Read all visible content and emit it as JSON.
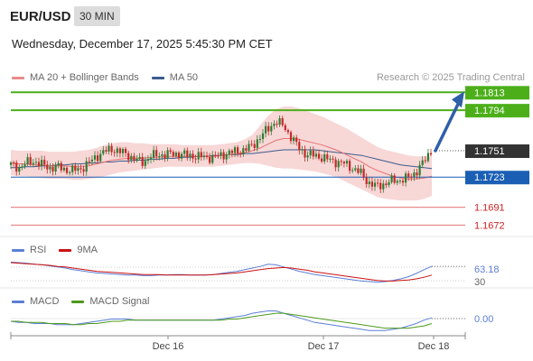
{
  "header": {
    "symbol": "EUR/USD",
    "timeframe": "30 MIN",
    "timestamp": "Wednesday, December 17, 2025 5:45:30 PM CET",
    "credit": "Research © 2025 Trading Central"
  },
  "legend": {
    "ma20": "MA 20 + Bollinger Bands",
    "ma50": "MA 50",
    "rsi": "RSI",
    "rsi_ma": "9MA",
    "macd": "MACD",
    "macd_signal": "MACD Signal"
  },
  "colors": {
    "bull": "#2e7d32",
    "bear": "#c62828",
    "green_level": "#4caf1a",
    "blue_level": "#1a5fb4",
    "red_level": "#e88a8a",
    "bollinger": "#f8d7d7",
    "ma20": "#e57373",
    "ma50": "#3b5b8c",
    "arrow": "#2f5fa8",
    "rsi_line": "#5b7fd6",
    "ma_line": "#cc1111",
    "macd_line": "#5b7fd6",
    "signal_line": "#4c9a1c"
  },
  "chart_data": [
    {
      "type": "candlestick",
      "title": "EUR/USD 30 MIN",
      "x_tick_labels": [
        "Dec 16",
        "Dec 17",
        "Dec 18"
      ],
      "price_range": [
        1.166,
        1.182
      ],
      "levels": [
        {
          "value": 1.1813,
          "label": "1.1813",
          "kind": "resistance",
          "color": "#4caf1a"
        },
        {
          "value": 1.1794,
          "label": "1.1794",
          "kind": "resistance",
          "color": "#4caf1a"
        },
        {
          "value": 1.1751,
          "label": "1.1751",
          "kind": "current",
          "color": "#333333"
        },
        {
          "value": 1.1723,
          "label": "1.1723",
          "kind": "pivot",
          "color": "#1a5fb4"
        },
        {
          "value": 1.1691,
          "label": "1.1691",
          "kind": "support",
          "color": "#cc2222"
        },
        {
          "value": 1.1672,
          "label": "1.1672",
          "kind": "support",
          "color": "#cc2222"
        }
      ],
      "close_path": [
        1.1736,
        1.1733,
        1.1738,
        1.174,
        1.1736,
        1.1733,
        1.1734,
        1.1731,
        1.173,
        1.1732,
        1.1738,
        1.1745,
        1.175,
        1.1753,
        1.175,
        1.1747,
        1.1741,
        1.1739,
        1.1745,
        1.1747,
        1.1747,
        1.1748,
        1.1747,
        1.1746,
        1.1745,
        1.1744,
        1.1744,
        1.1746,
        1.1749,
        1.175,
        1.1752,
        1.1756,
        1.1765,
        1.1774,
        1.1782,
        1.1778,
        1.1766,
        1.1754,
        1.1747,
        1.1746,
        1.1744,
        1.1741,
        1.1739,
        1.1737,
        1.1732,
        1.1727,
        1.1717,
        1.1713,
        1.1716,
        1.1719,
        1.172,
        1.1722,
        1.1728,
        1.1738,
        1.1751
      ],
      "ma20": [
        1.1738,
        1.1737,
        1.1737,
        1.1736,
        1.1736,
        1.1735,
        1.1735,
        1.1735,
        1.1734,
        1.1734,
        1.1735,
        1.1737,
        1.1739,
        1.1741,
        1.1742,
        1.1743,
        1.1743,
        1.1743,
        1.1744,
        1.1744,
        1.1745,
        1.1745,
        1.1745,
        1.1745,
        1.1745,
        1.1745,
        1.1745,
        1.1746,
        1.1747,
        1.1748,
        1.1749,
        1.1751,
        1.1754,
        1.1758,
        1.1762,
        1.1764,
        1.1764,
        1.1763,
        1.1761,
        1.1759,
        1.1757,
        1.1754,
        1.1751,
        1.1747,
        1.1743,
        1.1739,
        1.1734,
        1.173,
        1.1727,
        1.1724,
        1.1722,
        1.1721,
        1.1721,
        1.1722,
        1.1724
      ],
      "ma50": [
        1.1733,
        1.1733,
        1.1734,
        1.1734,
        1.1735,
        1.1735,
        1.1736,
        1.1736,
        1.1737,
        1.1737,
        1.1738,
        1.1738,
        1.1739,
        1.1739,
        1.174,
        1.174,
        1.1741,
        1.1741,
        1.1742,
        1.1742,
        1.1743,
        1.1743,
        1.1744,
        1.1744,
        1.1745,
        1.1745,
        1.1746,
        1.1746,
        1.1747,
        1.1747,
        1.1748,
        1.1748,
        1.1749,
        1.175,
        1.1751,
        1.1752,
        1.1752,
        1.1752,
        1.1752,
        1.1752,
        1.1751,
        1.175,
        1.1749,
        1.1748,
        1.1747,
        1.1746,
        1.1744,
        1.1742,
        1.174,
        1.1738,
        1.1736,
        1.1735,
        1.1734,
        1.1733,
        1.1732
      ],
      "bollinger_upper": [
        1.1752,
        1.1751,
        1.1751,
        1.1751,
        1.1751,
        1.175,
        1.175,
        1.175,
        1.175,
        1.1751,
        1.1752,
        1.1754,
        1.1757,
        1.1759,
        1.176,
        1.176,
        1.1759,
        1.1759,
        1.1758,
        1.1758,
        1.1758,
        1.1758,
        1.1757,
        1.1757,
        1.1757,
        1.1757,
        1.1757,
        1.1758,
        1.1759,
        1.176,
        1.1763,
        1.1768,
        1.1778,
        1.1788,
        1.1795,
        1.1798,
        1.1798,
        1.1796,
        1.1793,
        1.179,
        1.1787,
        1.1783,
        1.1779,
        1.1775,
        1.177,
        1.1765,
        1.176,
        1.1755,
        1.1752,
        1.175,
        1.1748,
        1.1746,
        1.1745,
        1.1745,
        1.1745
      ],
      "bollinger_lower": [
        1.1725,
        1.1724,
        1.1724,
        1.1723,
        1.1722,
        1.1721,
        1.1721,
        1.1721,
        1.172,
        1.172,
        1.1721,
        1.1722,
        1.1724,
        1.1726,
        1.1728,
        1.1729,
        1.173,
        1.1731,
        1.1732,
        1.1733,
        1.1734,
        1.1734,
        1.1734,
        1.1734,
        1.1734,
        1.1734,
        1.1734,
        1.1735,
        1.1736,
        1.1737,
        1.1738,
        1.1738,
        1.1737,
        1.1735,
        1.1733,
        1.1732,
        1.1732,
        1.1731,
        1.173,
        1.1729,
        1.1727,
        1.1725,
        1.1722,
        1.1718,
        1.1714,
        1.171,
        1.1706,
        1.1702,
        1.17,
        1.1699,
        1.1698,
        1.1698,
        1.1698,
        1.17,
        1.1703
      ],
      "projection": {
        "from": 1.1751,
        "to": 1.1813
      }
    },
    {
      "type": "line",
      "title": "RSI",
      "value_label": "63.18",
      "hidden_level_label": "30",
      "range": [
        25,
        80
      ],
      "series": [
        {
          "name": "RSI",
          "values": [
            71,
            70,
            69,
            67,
            66,
            64,
            62,
            60,
            57,
            55,
            53,
            51,
            50,
            49,
            48,
            47,
            47,
            46,
            46,
            47,
            47,
            48,
            48,
            47,
            47,
            47,
            48,
            50,
            52,
            54,
            57,
            60,
            63,
            67,
            66,
            62,
            58,
            54,
            51,
            48,
            46,
            44,
            42,
            40,
            38,
            36,
            35,
            34,
            35,
            37,
            40,
            44,
            50,
            57,
            63.18
          ]
        },
        {
          "name": "9MA",
          "values": [
            70,
            69,
            68,
            67,
            66,
            65,
            63,
            62,
            60,
            58,
            56,
            54,
            53,
            52,
            51,
            50,
            49,
            48,
            48,
            48,
            47,
            47,
            47,
            47,
            47,
            47,
            48,
            49,
            50,
            51,
            53,
            55,
            57,
            59,
            60,
            61,
            60,
            58,
            56,
            53,
            51,
            49,
            47,
            45,
            43,
            41,
            39,
            37,
            36,
            36,
            37,
            38,
            40,
            43,
            47
          ]
        }
      ]
    },
    {
      "type": "line",
      "title": "MACD",
      "value_label": "0.00",
      "range": [
        -0.001,
        0.0012
      ],
      "series": [
        {
          "name": "MACD",
          "values": [
            0.0001,
            0.0,
            0.0,
            -0.0001,
            -0.0001,
            -0.0001,
            -0.0002,
            -0.0002,
            -0.0002,
            -0.0001,
            0.0,
            0.0001,
            0.0002,
            0.0003,
            0.0003,
            0.0003,
            0.0002,
            0.0002,
            0.0002,
            0.0002,
            0.0002,
            0.0002,
            0.0002,
            0.0002,
            0.0002,
            0.0002,
            0.0002,
            0.0003,
            0.0004,
            0.0005,
            0.0006,
            0.0008,
            0.0009,
            0.001,
            0.001,
            0.0008,
            0.0006,
            0.0004,
            0.0002,
            0.0,
            -0.0001,
            -0.0002,
            -0.0003,
            -0.0004,
            -0.0005,
            -0.0006,
            -0.0007,
            -0.0007,
            -0.0007,
            -0.0006,
            -0.0005,
            -0.0003,
            -0.0001,
            0.0002,
            0.0004
          ]
        },
        {
          "name": "MACD Signal",
          "values": [
            0.0001,
            0.0001,
            0.0,
            0.0,
            0.0,
            -0.0001,
            -0.0001,
            -0.0001,
            -0.0002,
            -0.0002,
            -0.0001,
            -0.0001,
            0.0,
            0.0001,
            0.0001,
            0.0002,
            0.0002,
            0.0002,
            0.0002,
            0.0002,
            0.0002,
            0.0002,
            0.0002,
            0.0002,
            0.0002,
            0.0002,
            0.0002,
            0.0002,
            0.0003,
            0.0003,
            0.0004,
            0.0005,
            0.0006,
            0.0007,
            0.0008,
            0.0008,
            0.0007,
            0.0006,
            0.0005,
            0.0004,
            0.0003,
            0.0002,
            0.0001,
            0.0,
            -0.0001,
            -0.0002,
            -0.0003,
            -0.0004,
            -0.0005,
            -0.0005,
            -0.0005,
            -0.0005,
            -0.0004,
            -0.0003,
            -0.0001
          ]
        }
      ]
    }
  ]
}
